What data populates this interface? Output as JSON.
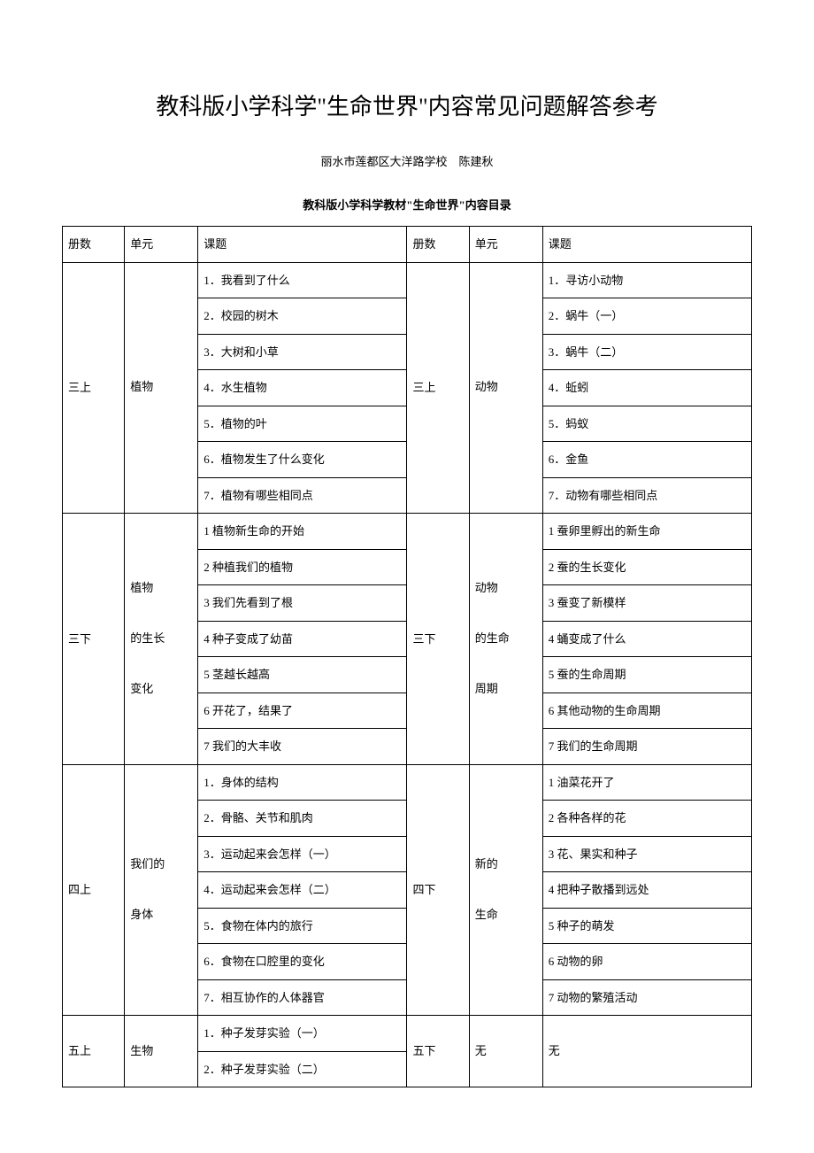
{
  "main_title": "教科版小学科学\"生命世界\"内容常见问题解答参考",
  "author_line": "丽水市莲都区大洋路学校　陈建秋",
  "sub_title": "教科版小学科学教材\"生命世界\"内容目录",
  "header": {
    "volume": "册数",
    "unit": "单元",
    "lesson": "课题"
  },
  "sections": [
    {
      "left_volume": "三上",
      "left_unit": "植物",
      "right_volume": "三上",
      "right_unit": "动物",
      "rows": [
        {
          "l": "1．我看到了什么",
          "r": "1．寻访小动物"
        },
        {
          "l": "2．校园的树木",
          "r": "2．蜗牛（一）"
        },
        {
          "l": "3．大树和小草",
          "r": "3．蜗牛（二）"
        },
        {
          "l": "4．水生植物",
          "r": "4．蚯蚓"
        },
        {
          "l": "5．植物的叶",
          "r": "5．蚂蚁"
        },
        {
          "l": "6．植物发生了什么变化",
          "r": "6．金鱼"
        },
        {
          "l": "7．植物有哪些相同点",
          "r": "7．动物有哪些相同点"
        }
      ]
    },
    {
      "left_volume": "三下",
      "left_unit": "植物\n\n的生长\n\n变化",
      "right_volume": "三下",
      "right_unit": "动物\n\n的生命\n\n周期",
      "rows": [
        {
          "l": "1  植物新生命的开始",
          "r": "1  蚕卵里孵出的新生命"
        },
        {
          "l": "2  种植我们的植物",
          "r": "2  蚕的生长变化"
        },
        {
          "l": "3  我们先看到了根",
          "r": "3  蚕变了新模样"
        },
        {
          "l": "4  种子变成了幼苗",
          "r": "4  蛹变成了什么"
        },
        {
          "l": "5  茎越长越高",
          "r": "5  蚕的生命周期"
        },
        {
          "l": "6  开花了，结果了",
          "r": "6  其他动物的生命周期"
        },
        {
          "l": "7  我们的大丰收",
          "r": "7  我们的生命周期"
        }
      ]
    },
    {
      "left_volume": "四上",
      "left_unit": "我们的\n\n身体",
      "right_volume": "四下",
      "right_unit": "新的\n\n生命",
      "rows": [
        {
          "l": "1．身体的结构",
          "r": "1  油菜花开了"
        },
        {
          "l": "2．骨骼、关节和肌肉",
          "r": "2  各种各样的花"
        },
        {
          "l": "3．运动起来会怎样（一）",
          "r": "3  花、果实和种子"
        },
        {
          "l": "4．运动起来会怎样（二）",
          "r": "4  把种子散播到远处"
        },
        {
          "l": "5．食物在体内的旅行",
          "r": "5  种子的萌发"
        },
        {
          "l": "6．食物在口腔里的变化",
          "r": "6  动物的卵"
        },
        {
          "l": "7．相互协作的人体器官",
          "r": "7  动物的繁殖活动"
        }
      ]
    },
    {
      "left_volume": "五上",
      "left_unit": "生物",
      "right_volume": "五下",
      "right_unit": "无",
      "right_lesson_merged": "无",
      "rows": [
        {
          "l": "1．种子发芽实验（一）"
        },
        {
          "l": "2．种子发芽实验（二）"
        }
      ]
    }
  ]
}
